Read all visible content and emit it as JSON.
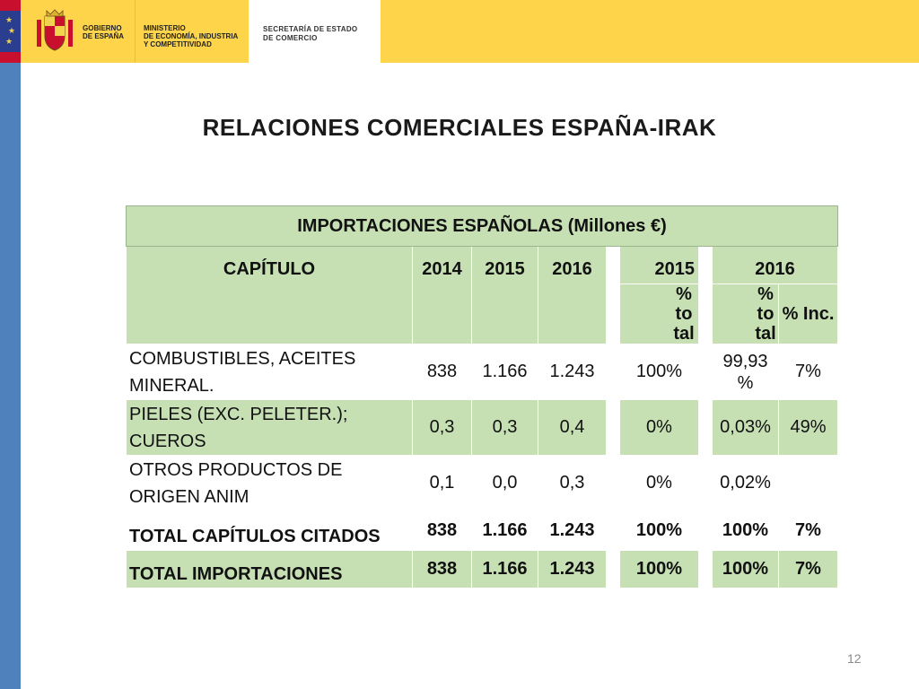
{
  "header": {
    "gov_line1": "GOBIERNO",
    "gov_line2": "DE ESPAÑA",
    "ministry_line1": "MINISTERIO",
    "ministry_line2": "DE ECONOMÍA, INDUSTRIA",
    "ministry_line3": "Y COMPETITIVIDAD",
    "secretaria_line1": "SECRETARÍA DE ESTADO",
    "secretaria_line2": "DE COMERCIO"
  },
  "slide": {
    "title": "RELACIONES COMERCIALES ESPAÑA-IRAK",
    "page_number": "12"
  },
  "table": {
    "caption": "IMPORTACIONES ESPAÑOLAS (Millones €)",
    "col_capitulo": "CAPÍTULO",
    "col_2014": "2014",
    "col_2015": "2015",
    "col_2016": "2016",
    "col_share_2015_year": "2015",
    "col_share_2016_year": "2016",
    "col_pct_total_2015": "% total",
    "col_pct_total_2016": "% total",
    "col_pct_inc": "% Inc.",
    "rows": [
      {
        "label_line1": " COMBUSTIBLES, ACEITES",
        "label_line2": "MINERAL.",
        "v2014": "838",
        "v2015": "1.166",
        "v2016": "1.243",
        "pct2015": "100%",
        "pct2016_line1": "99,93",
        "pct2016_line2": "%",
        "inc": "7%"
      },
      {
        "label_line1": " PIELES (EXC. PELETER.);",
        "label_line2": "CUEROS",
        "v2014": "0,3",
        "v2015": "0,3",
        "v2016": "0,4",
        "pct2015": "0%",
        "pct2016": "0,03%",
        "inc": "49%"
      },
      {
        "label_line1": " OTROS PRODUCTOS DE",
        "label_line2": "ORIGEN ANIM",
        "v2014": "0,1",
        "v2015": "0,0",
        "v2016": "0,3",
        "pct2015": "0%",
        "pct2016": "0,02%",
        "inc": ""
      },
      {
        "label": "TOTAL CAPÍTULOS CITADOS",
        "v2014": "838",
        "v2015": "1.166",
        "v2016": "1.243",
        "pct2015": "100%",
        "pct2016": "100%",
        "inc": "7%"
      },
      {
        "label": "TOTAL IMPORTACIONES",
        "v2014": "838",
        "v2015": "1.166",
        "v2016": "1.243",
        "pct2015": "100%",
        "pct2016": "100%",
        "inc": "7%"
      }
    ]
  }
}
